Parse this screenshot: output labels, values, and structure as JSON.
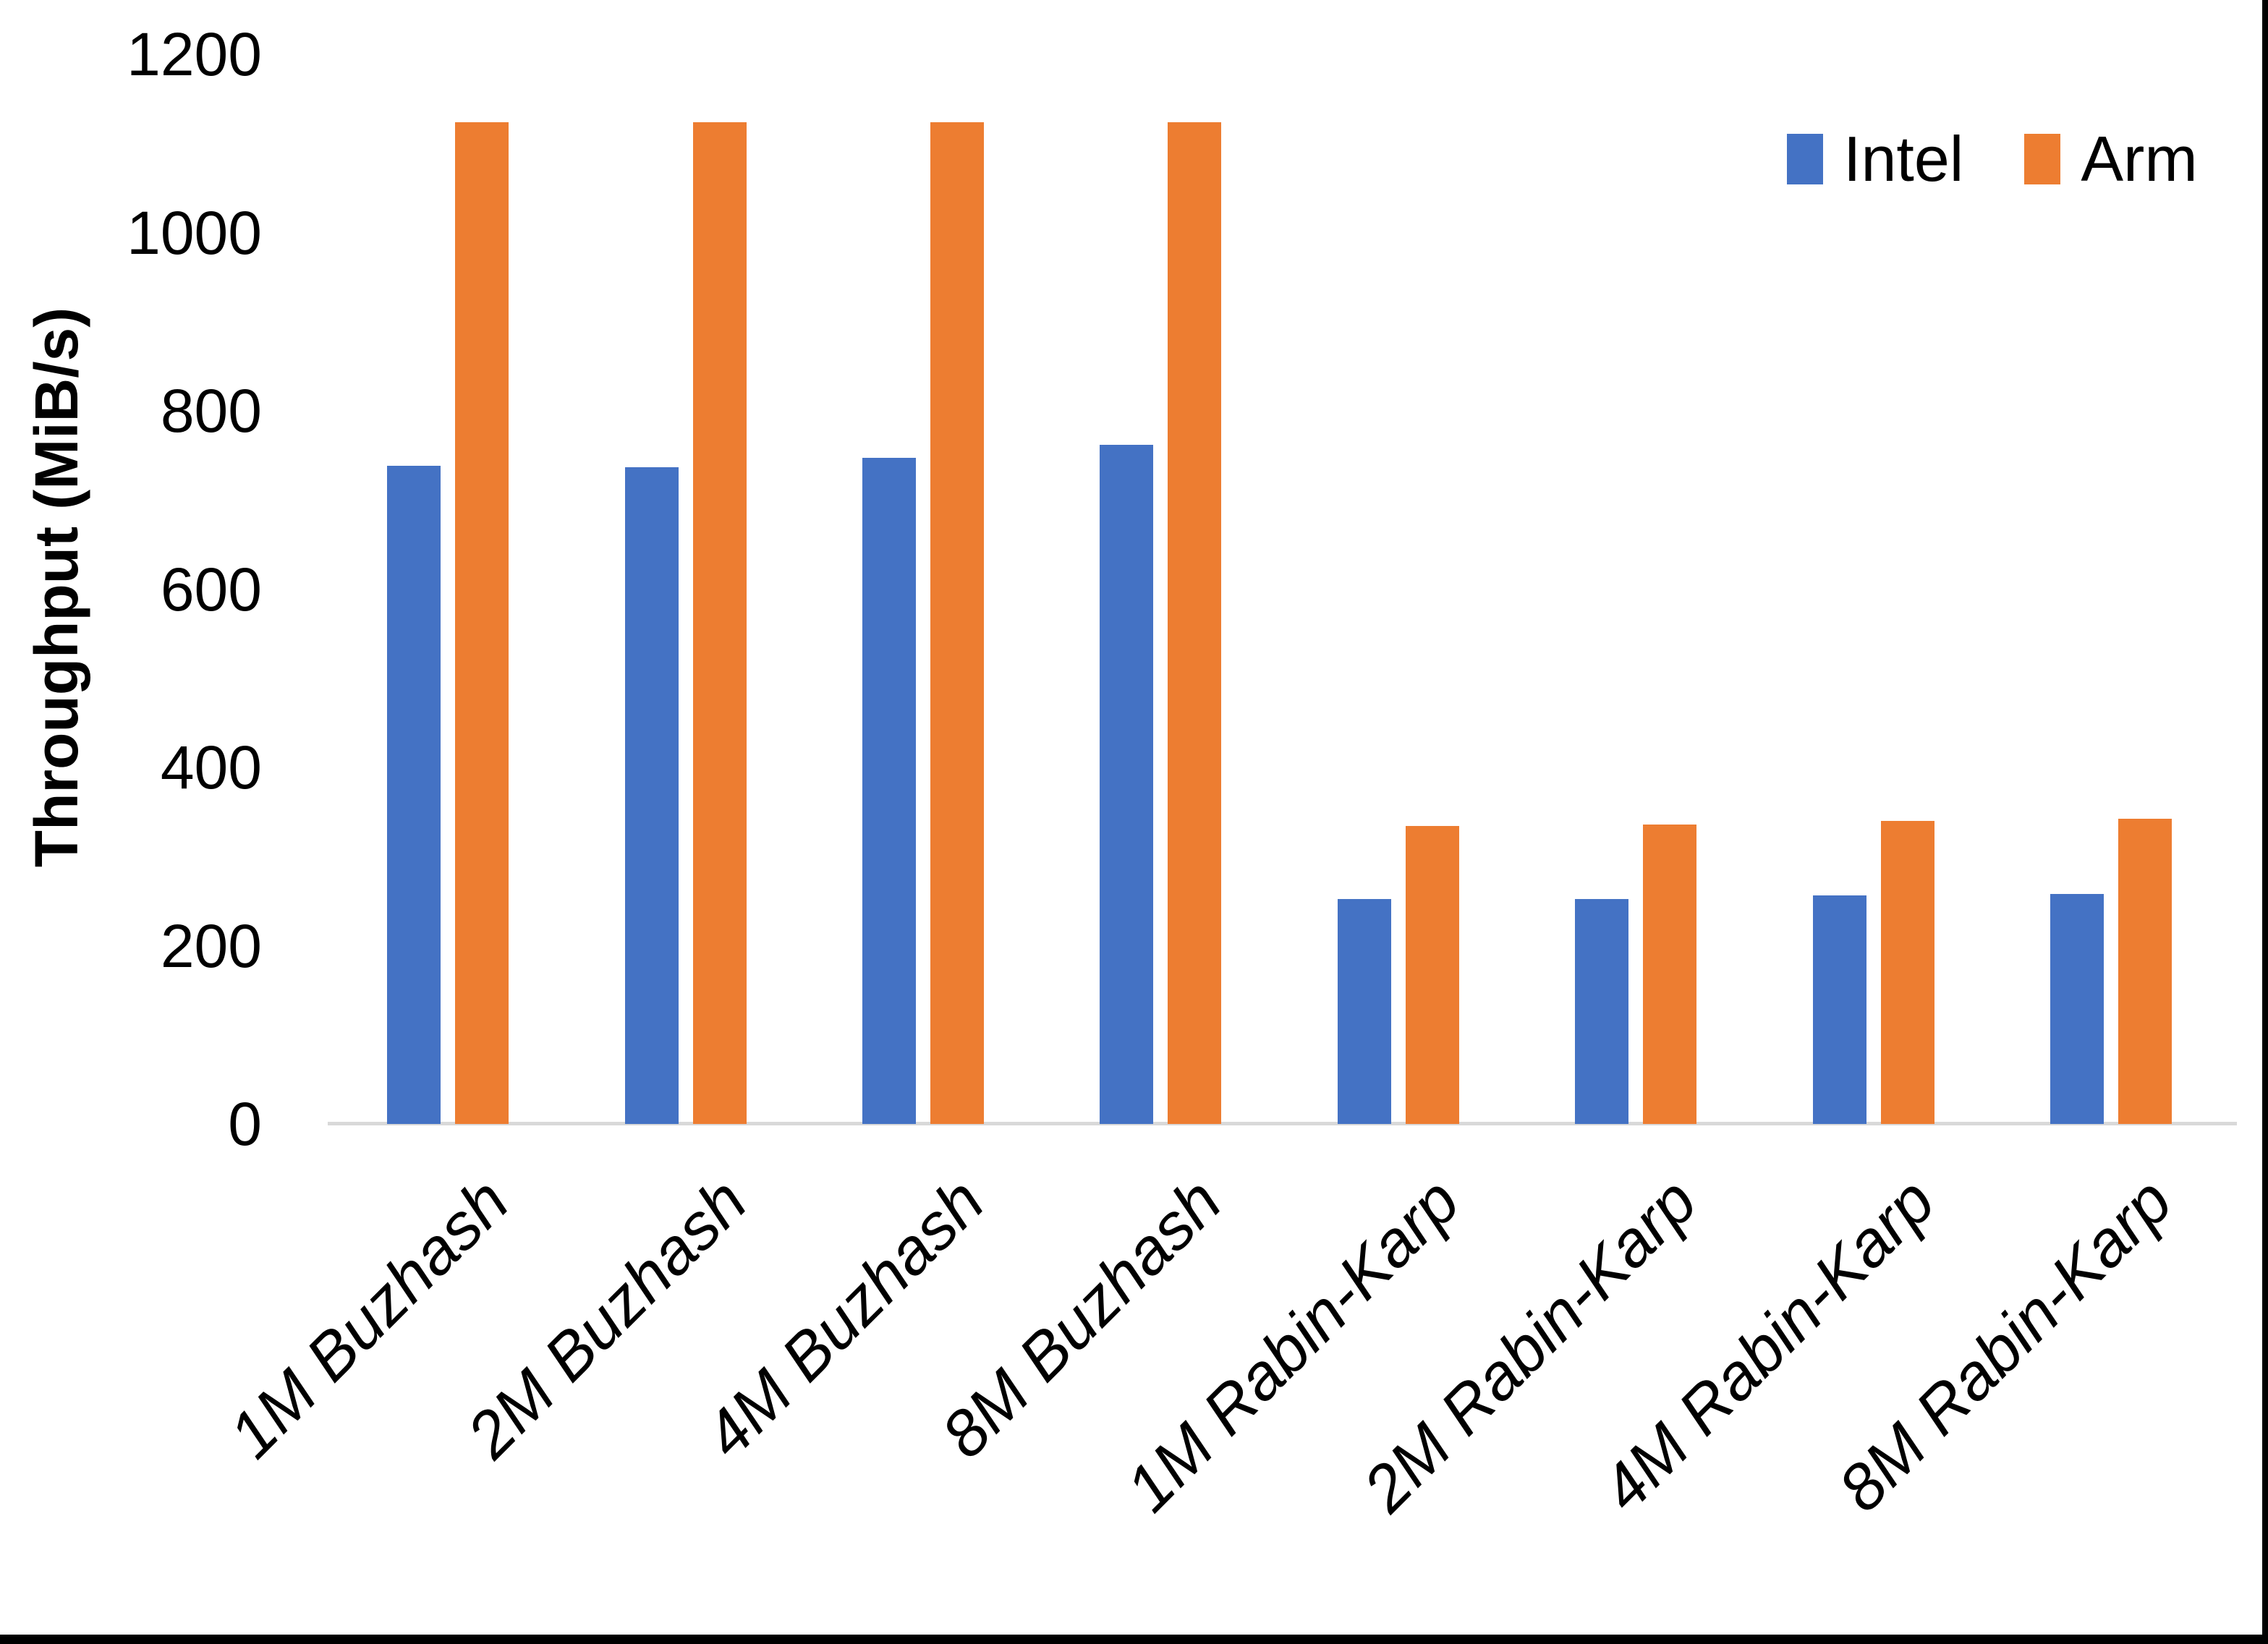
{
  "chart_data": {
    "type": "bar",
    "title": "",
    "ylabel": "Throughput (MiB/s)",
    "xlabel": "",
    "categories": [
      "1M Buzhash",
      "2M Buzhash",
      "4M Buzhash",
      "8M Buzhash",
      "1M Rabin-Karp",
      "2M Rabin-Karp",
      "4M Rabin-Karp",
      "8M Rabin-Karp"
    ],
    "series": [
      {
        "name": "Intel",
        "color": "#4472C4",
        "values": [
          738,
          737,
          747,
          762,
          252,
          252,
          256,
          258
        ]
      },
      {
        "name": "Arm",
        "color": "#ED7D31",
        "values": [
          1124,
          1124,
          1124,
          1124,
          334,
          336,
          340,
          342
        ]
      }
    ],
    "ylim": [
      0,
      1200
    ],
    "yticks": [
      0,
      200,
      400,
      600,
      800,
      1000,
      1200
    ],
    "grid": false,
    "legend_position": "top-right",
    "axis_line_color": "#D9D9D9",
    "text_color": "#000000",
    "background_color": "#FFFFFF"
  }
}
